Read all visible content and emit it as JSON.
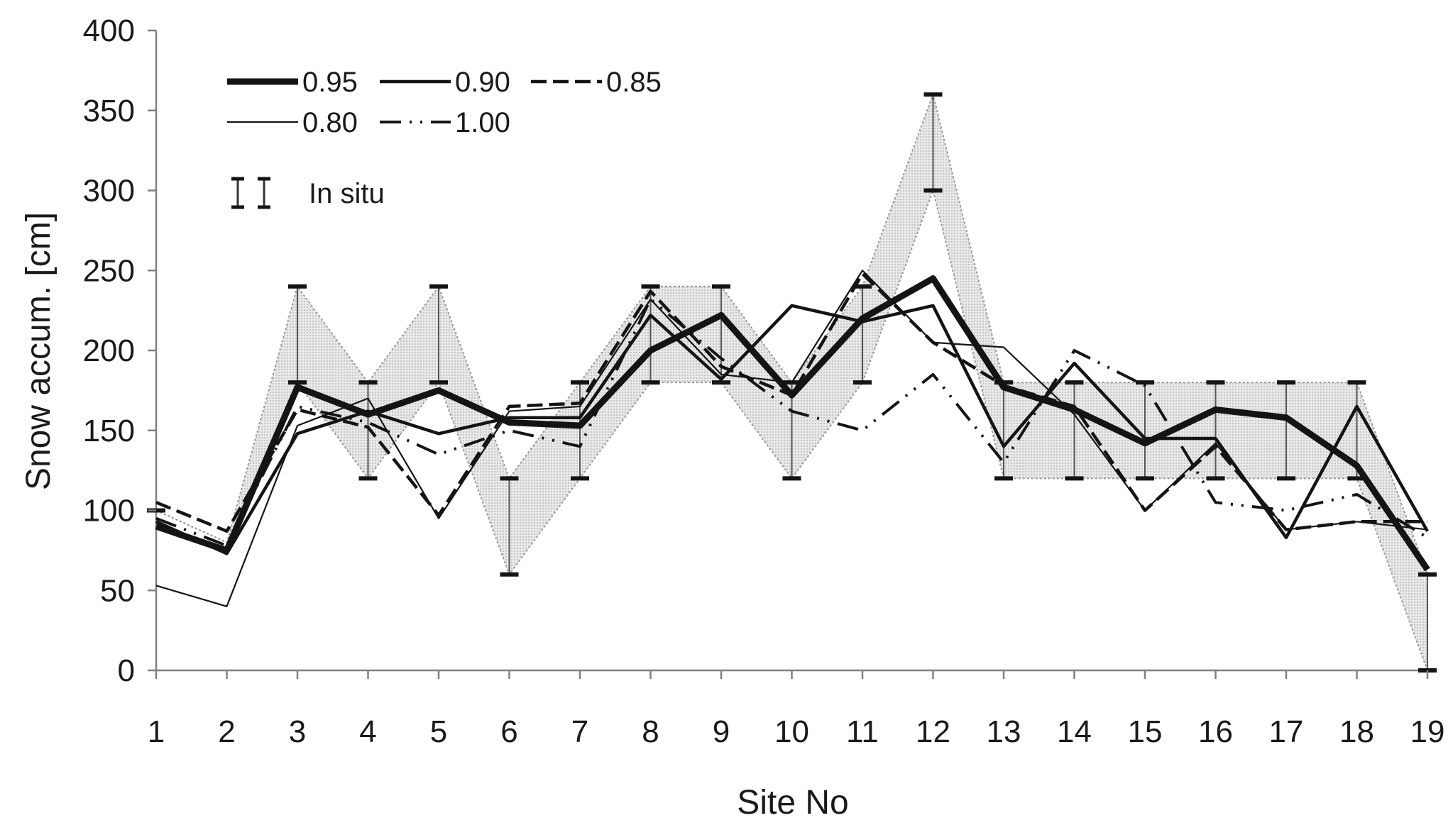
{
  "chart_data": {
    "type": "line",
    "title": "",
    "xlabel": "Site No",
    "ylabel": "Snow accum. [cm]",
    "ylim": [
      0,
      400
    ],
    "yticks": [
      0,
      50,
      100,
      150,
      200,
      250,
      300,
      350,
      400
    ],
    "yticks_text": [
      "0",
      "50",
      "100",
      "150",
      "200",
      "250",
      "300",
      "350",
      "400"
    ],
    "x": [
      1,
      2,
      3,
      4,
      5,
      6,
      7,
      8,
      9,
      10,
      11,
      12,
      13,
      14,
      15,
      16,
      17,
      18,
      19
    ],
    "x_labels": [
      "1",
      "2",
      "3",
      "4",
      "5",
      "6",
      "7",
      "8",
      "9",
      "10",
      "11",
      "12",
      "13",
      "14",
      "15",
      "16",
      "17",
      "18",
      "19"
    ],
    "legend_position": "top-left",
    "series": [
      {
        "name": "0.95",
        "label": "0.95",
        "style": "thick",
        "values": [
          90,
          75,
          177,
          160,
          175,
          155,
          153,
          200,
          222,
          172,
          220,
          245,
          177,
          163,
          142,
          163,
          158,
          128,
          63
        ]
      },
      {
        "name": "0.90",
        "label": "0.90",
        "style": "solid",
        "values": [
          93,
          73,
          148,
          162,
          148,
          158,
          158,
          222,
          182,
          228,
          218,
          228,
          140,
          192,
          145,
          145,
          83,
          165,
          87
        ]
      },
      {
        "name": "0.85",
        "label": "0.85",
        "style": "dashed",
        "values": [
          105,
          87,
          163,
          152,
          97,
          165,
          167,
          237,
          190,
          172,
          248,
          205,
          178,
          165,
          100,
          140,
          88,
          93,
          93
        ]
      },
      {
        "name": "0.80",
        "label": "0.80",
        "style": "thin",
        "values": [
          53,
          40,
          153,
          170,
          95,
          162,
          165,
          232,
          185,
          180,
          250,
          205,
          202,
          160,
          100,
          142,
          88,
          93,
          88
        ]
      },
      {
        "name": "1.00",
        "label": "1.00",
        "style": "dash-dot",
        "values": [
          95,
          78,
          165,
          155,
          135,
          150,
          140,
          232,
          195,
          162,
          150,
          185,
          130,
          200,
          178,
          105,
          100,
          110,
          83
        ]
      }
    ],
    "in_situ": {
      "label": "In situ",
      "lower": [
        100,
        80,
        180,
        120,
        180,
        60,
        120,
        180,
        180,
        120,
        180,
        300,
        120,
        120,
        120,
        120,
        120,
        120,
        0
      ],
      "upper": [
        100,
        80,
        240,
        180,
        240,
        120,
        180,
        240,
        240,
        180,
        240,
        360,
        180,
        180,
        180,
        180,
        180,
        180,
        60
      ],
      "capped": [
        true,
        false,
        true,
        true,
        true,
        true,
        true,
        true,
        true,
        true,
        true,
        true,
        true,
        true,
        true,
        true,
        true,
        true,
        true
      ]
    },
    "colors": {
      "line": "#141414",
      "band": "#c8c8c8",
      "band_edge": "#9a9a9a",
      "axis": "#808080",
      "text": "#1a1a1a"
    }
  }
}
